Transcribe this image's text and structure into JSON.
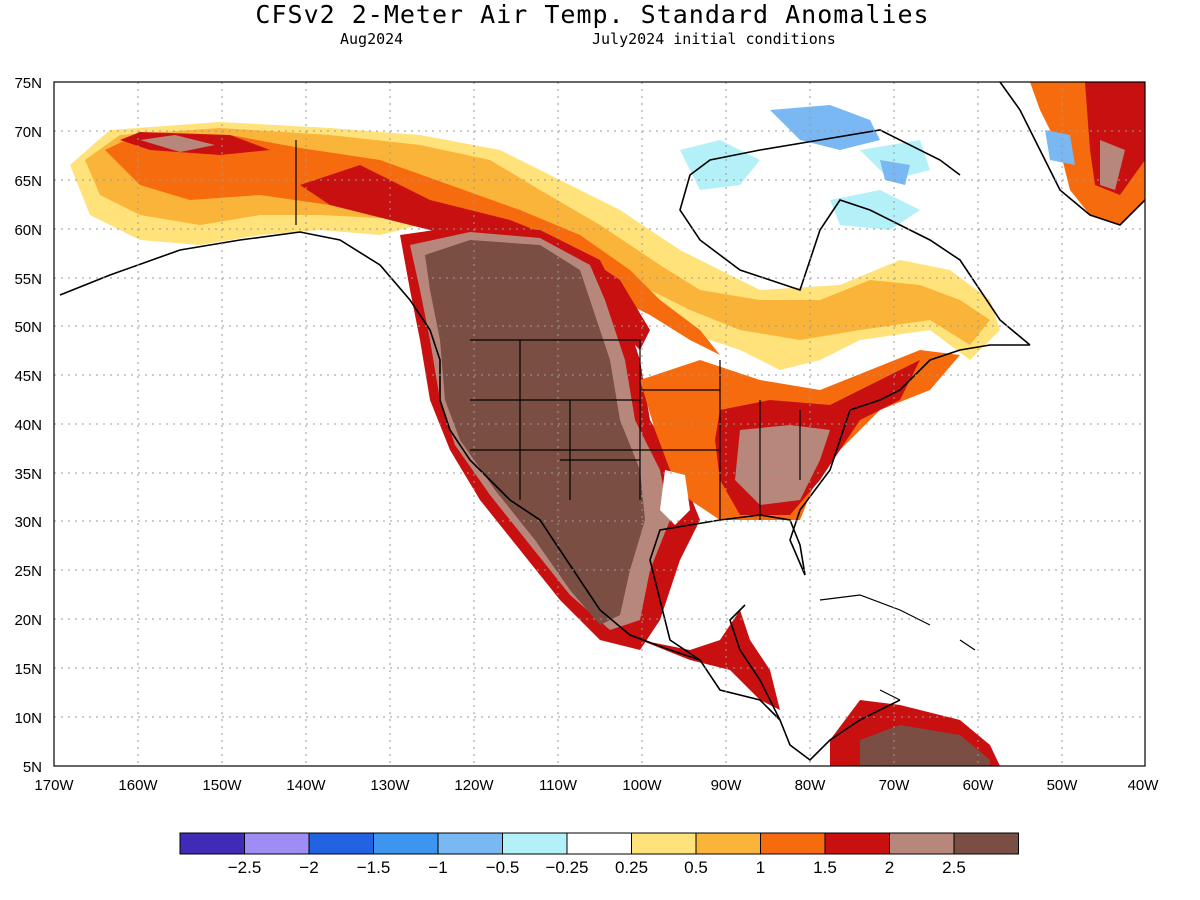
{
  "title": "CFSv2 2-Meter Air Temp. Standard Anomalies",
  "valid_month": "Aug2024",
  "init": "July2024 initial conditions",
  "lat_labels": [
    "75N",
    "70N",
    "65N",
    "60N",
    "55N",
    "50N",
    "45N",
    "40N",
    "35N",
    "30N",
    "25N",
    "20N",
    "15N",
    "10N",
    "5N"
  ],
  "lon_labels": [
    "170W",
    "160W",
    "150W",
    "140W",
    "130W",
    "120W",
    "110W",
    "100W",
    "90W",
    "80W",
    "70W",
    "60W",
    "50W",
    "40W"
  ],
  "colorbar": {
    "colors": [
      "#3f2bb7",
      "#a08cf5",
      "#2163e0",
      "#3e95f0",
      "#7ab8f3",
      "#b4f0f8",
      "#ffffff",
      "#ffe27a",
      "#fbb43a",
      "#f76b0f",
      "#c81010",
      "#b8877c",
      "#7a4e43"
    ],
    "labels": [
      "−2.5",
      "−2",
      "−1.5",
      "−1",
      "−0.5",
      "−0.25",
      "0.25",
      "0.5",
      "1",
      "1.5",
      "2",
      "2.5"
    ]
  },
  "chart_data": {
    "type": "heatmap",
    "title": "CFSv2 2-Meter Air Temp. Standard Anomalies",
    "subtitle": "Aug2024 / July2024 initial conditions",
    "x_range": [
      "170W",
      "40W"
    ],
    "y_range": [
      "5N",
      "75N"
    ],
    "levels": [
      -2.5,
      -2,
      -1.5,
      -1,
      -0.5,
      -0.25,
      0.25,
      0.5,
      1,
      1.5,
      2,
      2.5
    ],
    "grid": true
  }
}
